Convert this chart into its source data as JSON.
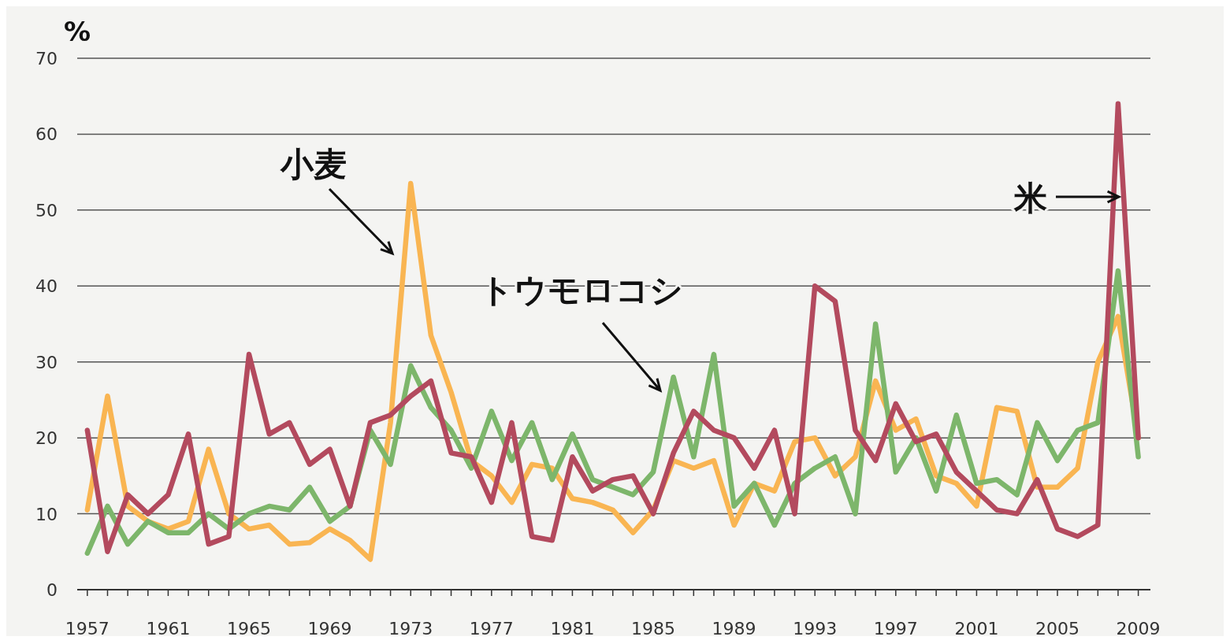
{
  "chart_data": {
    "type": "line",
    "ylabel": "%",
    "x": [
      1957,
      1958,
      1959,
      1960,
      1961,
      1962,
      1963,
      1964,
      1965,
      1966,
      1967,
      1968,
      1969,
      1970,
      1971,
      1972,
      1973,
      1974,
      1975,
      1976,
      1977,
      1978,
      1979,
      1980,
      1981,
      1982,
      1983,
      1984,
      1985,
      1986,
      1987,
      1988,
      1989,
      1990,
      1991,
      1992,
      1993,
      1994,
      1995,
      1996,
      1997,
      1998,
      1999,
      2000,
      2001,
      2002,
      2003,
      2004,
      2005,
      2006,
      2007,
      2008,
      2009
    ],
    "xlim": [
      1956.5,
      2009.6
    ],
    "xticks": [
      1957,
      {
        "value": 1958,
        "label": null
      },
      {
        "value": 1959,
        "label": null
      },
      {
        "value": 1960,
        "label": null
      },
      1961,
      {
        "value": 1962,
        "label": null
      },
      {
        "value": 1963,
        "label": null
      },
      {
        "value": 1964,
        "label": null
      },
      1965,
      {
        "value": 1966,
        "label": null
      },
      {
        "value": 1967,
        "label": null
      },
      {
        "value": 1968,
        "label": null
      },
      1969,
      {
        "value": 1970,
        "label": null
      },
      {
        "value": 1971,
        "label": null
      },
      {
        "value": 1972,
        "label": null
      },
      1973,
      {
        "value": 1974,
        "label": null
      },
      {
        "value": 1975,
        "label": null
      },
      {
        "value": 1976,
        "label": null
      },
      1977,
      {
        "value": 1978,
        "label": null
      },
      {
        "value": 1979,
        "label": null
      },
      {
        "value": 1980,
        "label": null
      },
      1981,
      {
        "value": 1982,
        "label": null
      },
      {
        "value": 1983,
        "label": null
      },
      {
        "value": 1984,
        "label": null
      },
      1985,
      {
        "value": 1986,
        "label": null
      },
      {
        "value": 1987,
        "label": null
      },
      {
        "value": 1988,
        "label": null
      },
      1989,
      {
        "value": 1990,
        "label": null
      },
      {
        "value": 1991,
        "label": null
      },
      {
        "value": 1992,
        "label": null
      },
      1993,
      {
        "value": 1994,
        "label": null
      },
      {
        "value": 1995,
        "label": null
      },
      {
        "value": 1996,
        "label": null
      },
      1997,
      {
        "value": 1998,
        "label": null
      },
      {
        "value": 1999,
        "label": null
      },
      {
        "value": 2000,
        "label": null
      },
      2001,
      {
        "value": 2002,
        "label": null
      },
      {
        "value": 2003,
        "label": null
      },
      {
        "value": 2004,
        "label": null
      },
      2005,
      {
        "value": 2006,
        "label": null
      },
      {
        "value": 2007,
        "label": null
      },
      {
        "value": 2008,
        "label": null
      },
      2009
    ],
    "ylim": [
      0,
      70
    ],
    "yticks": [
      0,
      10,
      20,
      30,
      40,
      50,
      60,
      70
    ],
    "grid": "y",
    "marker": "none",
    "line_style": "solid",
    "series": [
      {
        "name": "小麦",
        "color": "#f9b552",
        "values": [
          10.5,
          25.5,
          11,
          9,
          8,
          9,
          18.5,
          10,
          8,
          8.5,
          6,
          6.2,
          8,
          6.5,
          4,
          22,
          53.5,
          33.5,
          26,
          17,
          15,
          11.5,
          16.5,
          16,
          12,
          11.5,
          10.5,
          7.5,
          10.5,
          17,
          16,
          17,
          8.5,
          14,
          13,
          19.5,
          20,
          15,
          17.5,
          27.5,
          21,
          22.5,
          15,
          14,
          11,
          24,
          23.5,
          13.5,
          13.5,
          16,
          30,
          36,
          20
        ]
      },
      {
        "name": "トウモロコシ",
        "color": "#7db66b",
        "values": [
          4.8,
          11,
          6,
          9,
          7.5,
          7.5,
          10,
          8,
          10,
          11,
          10.5,
          13.5,
          9,
          11,
          21,
          16.5,
          29.5,
          24,
          21,
          16,
          23.5,
          17,
          22,
          14.5,
          20.5,
          14.5,
          13.5,
          12.5,
          15.5,
          28,
          17.5,
          31,
          11,
          14,
          8.5,
          14,
          16,
          17.5,
          10,
          35,
          15.5,
          20,
          13,
          23,
          14,
          14.5,
          12.5,
          22,
          17,
          21,
          22,
          42,
          17.5
        ]
      },
      {
        "name": "米",
        "color": "#b34a5e",
        "values": [
          21,
          5,
          12.5,
          10,
          12.5,
          20.5,
          6,
          7,
          31,
          20.5,
          22,
          16.5,
          18.5,
          11,
          22,
          23,
          25.5,
          27.5,
          18,
          17.5,
          11.5,
          22,
          7,
          6.5,
          17.5,
          13,
          14.5,
          15,
          10,
          18,
          23.5,
          21,
          20,
          16,
          21,
          10,
          40,
          38,
          21,
          17,
          24.5,
          19.5,
          20.5,
          15.5,
          13,
          10.5,
          10,
          14.5,
          8,
          7,
          8.5,
          64,
          20
        ]
      }
    ]
  }
}
